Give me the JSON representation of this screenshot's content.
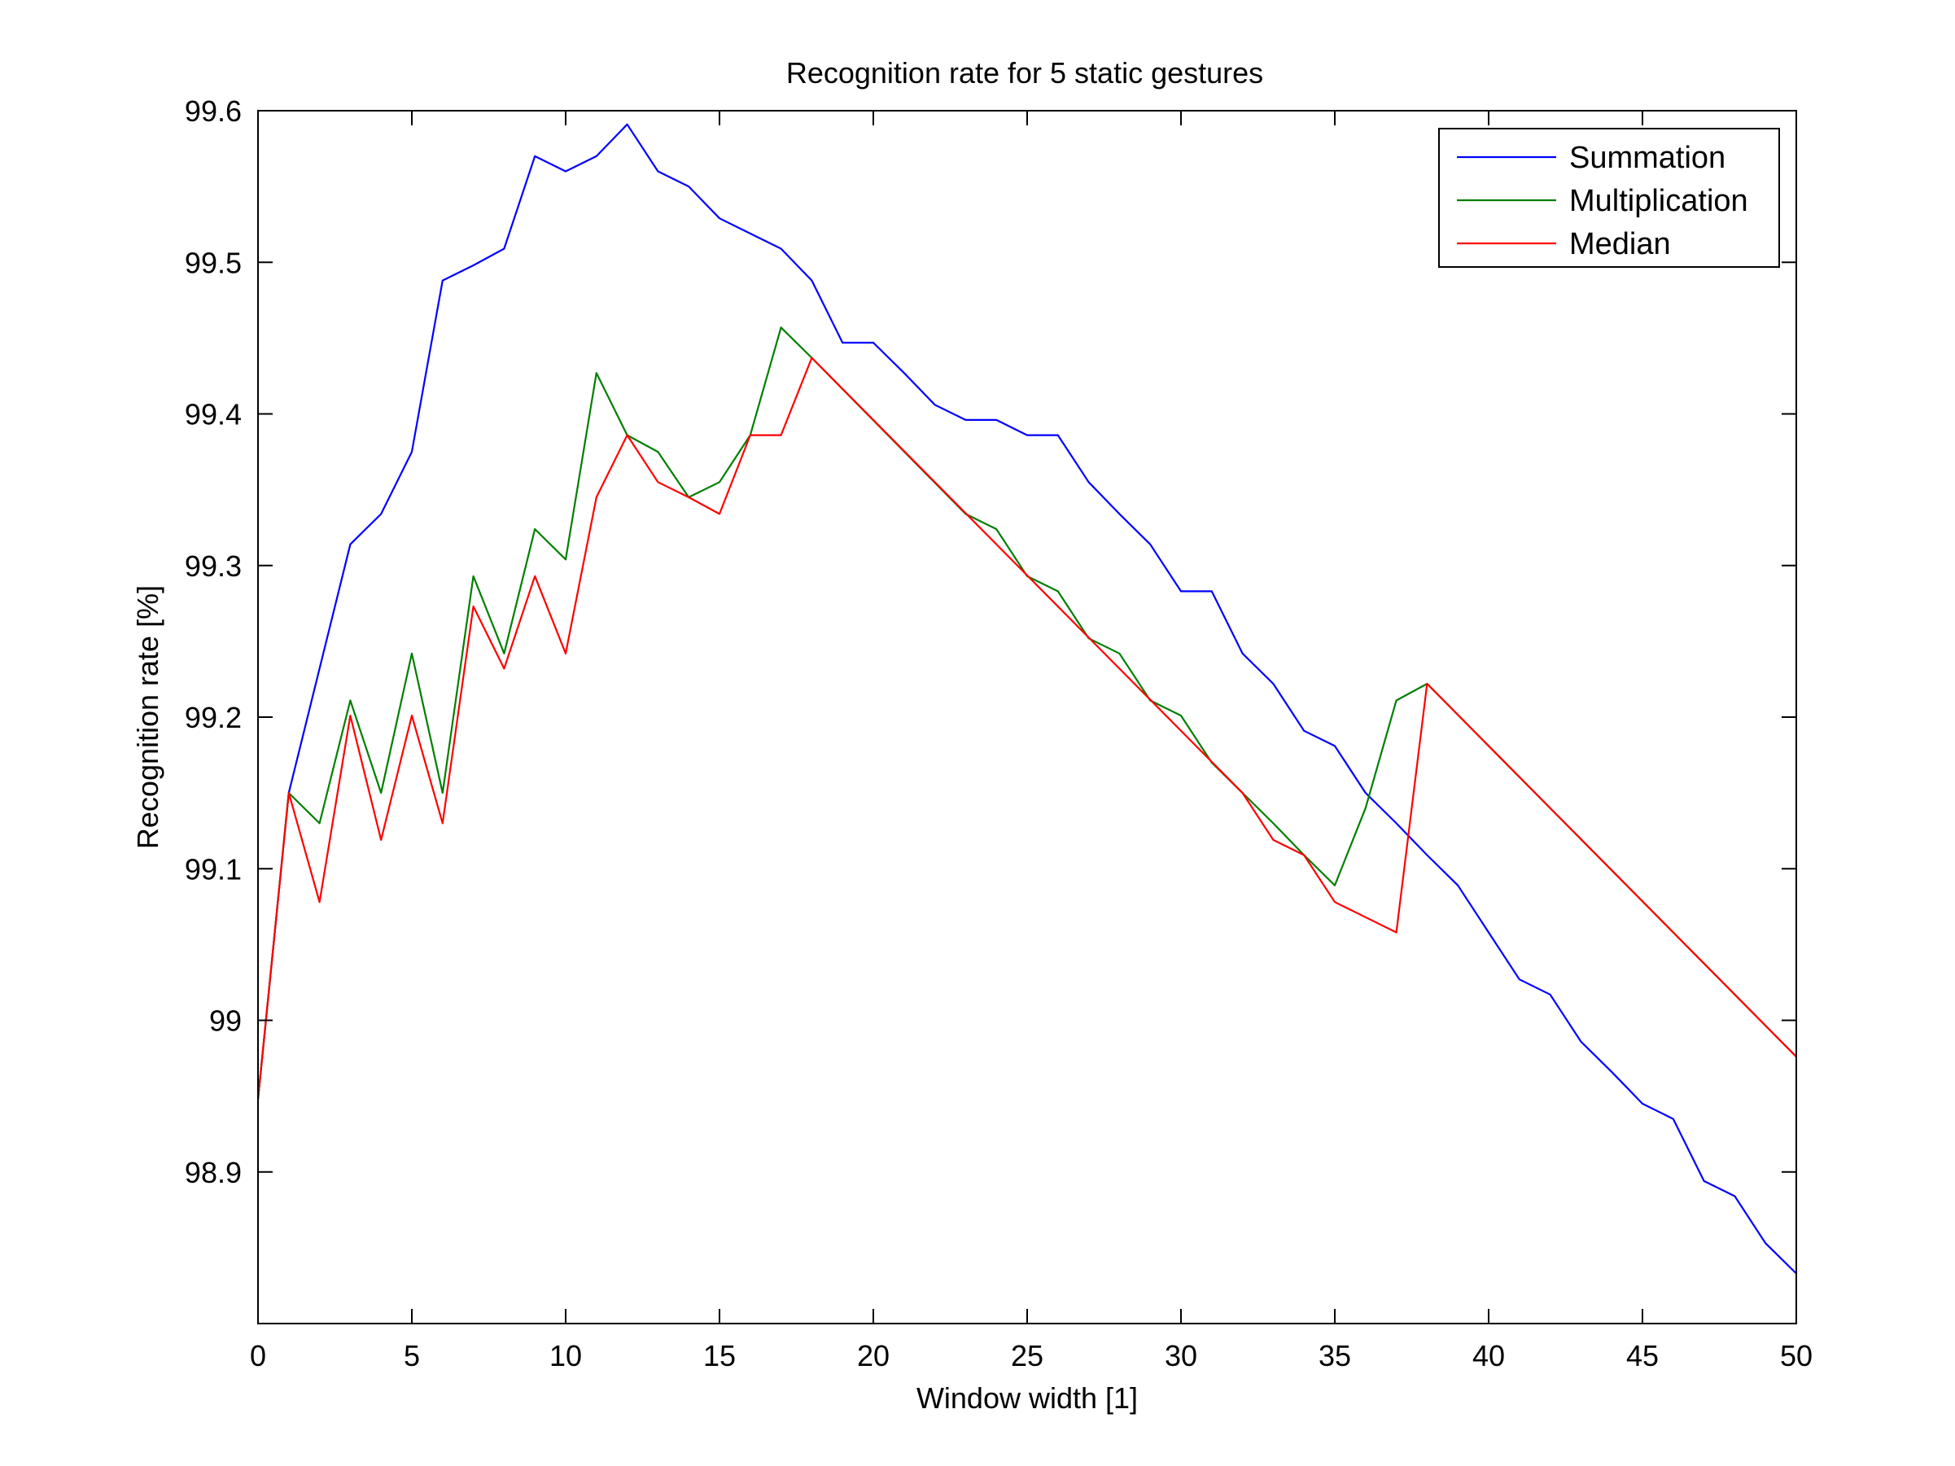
{
  "chart_data": {
    "type": "line",
    "title": "Recognition rate for 5 static gestures",
    "xlabel": "Window width [1]",
    "ylabel": "Recognition rate [%]",
    "xlim": [
      0,
      50
    ],
    "ylim": [
      98.8,
      99.6
    ],
    "xticks": [
      0,
      5,
      10,
      15,
      20,
      25,
      30,
      35,
      40,
      45,
      50
    ],
    "xtick_labels": [
      "0",
      "5",
      "10",
      "15",
      "20",
      "25",
      "30",
      "35",
      "40",
      "45",
      "50"
    ],
    "yticks": [
      98.9,
      99.0,
      99.1,
      99.2,
      99.3,
      99.4,
      99.5,
      99.6
    ],
    "ytick_labels": [
      "98.9",
      "99",
      "99.1",
      "99.2",
      "99.3",
      "99.4",
      "99.5",
      "99.6"
    ],
    "grid": false,
    "legend_position": "top-right",
    "series": [
      {
        "name": "Summation",
        "color": "#0000ff",
        "x": [
          0,
          1,
          2,
          3,
          4,
          5,
          6,
          7,
          8,
          9,
          10,
          11,
          12,
          13,
          14,
          15,
          16,
          17,
          18,
          19,
          20,
          21,
          22,
          23,
          24,
          25,
          26,
          27,
          28,
          29,
          30,
          31,
          32,
          33,
          34,
          35,
          36,
          37,
          38,
          39,
          40,
          41,
          42,
          43,
          44,
          45,
          46,
          47,
          48,
          49,
          50
        ],
        "y": [
          98.948,
          99.15,
          99.232,
          99.314,
          99.334,
          99.375,
          99.488,
          99.498,
          99.509,
          99.57,
          99.56,
          99.57,
          99.591,
          99.56,
          99.55,
          99.529,
          99.519,
          99.509,
          99.488,
          99.447,
          99.447,
          99.427,
          99.406,
          99.396,
          99.396,
          99.386,
          99.386,
          99.355,
          99.334,
          99.314,
          99.283,
          99.283,
          99.242,
          99.222,
          99.191,
          99.181,
          99.15,
          99.13,
          99.109,
          99.089,
          99.058,
          99.027,
          99.017,
          98.986,
          98.966,
          98.945,
          98.935,
          98.894,
          98.884,
          98.853,
          98.833
        ]
      },
      {
        "name": "Multiplication",
        "color": "#007f00",
        "x": [
          0,
          1,
          2,
          3,
          4,
          5,
          6,
          7,
          8,
          9,
          10,
          11,
          12,
          13,
          14,
          15,
          16,
          17,
          18,
          23,
          24,
          25,
          26,
          27,
          28,
          29,
          30,
          31,
          32,
          33,
          34,
          35,
          36,
          37,
          38,
          50
        ],
        "y": [
          98.948,
          99.15,
          99.13,
          99.211,
          99.15,
          99.242,
          99.15,
          99.293,
          99.242,
          99.324,
          99.304,
          99.427,
          99.386,
          99.375,
          99.345,
          99.355,
          99.386,
          99.457,
          99.437,
          99.334,
          99.324,
          99.293,
          99.283,
          99.252,
          99.242,
          99.211,
          99.201,
          99.17,
          99.15,
          99.13,
          99.109,
          99.089,
          99.14,
          99.211,
          99.222,
          98.976
        ]
      },
      {
        "name": "Median",
        "color": "#ff0000",
        "x": [
          0,
          1,
          2,
          3,
          4,
          5,
          6,
          7,
          8,
          9,
          10,
          11,
          12,
          13,
          14,
          15,
          16,
          17,
          18,
          32,
          33,
          34,
          35,
          36,
          37,
          38,
          50
        ],
        "y": [
          98.948,
          99.15,
          99.078,
          99.201,
          99.119,
          99.201,
          99.13,
          99.273,
          99.232,
          99.293,
          99.242,
          99.345,
          99.386,
          99.355,
          99.345,
          99.334,
          99.386,
          99.386,
          99.437,
          99.15,
          99.119,
          99.109,
          99.078,
          99.068,
          99.058,
          99.222,
          98.976
        ]
      }
    ]
  }
}
